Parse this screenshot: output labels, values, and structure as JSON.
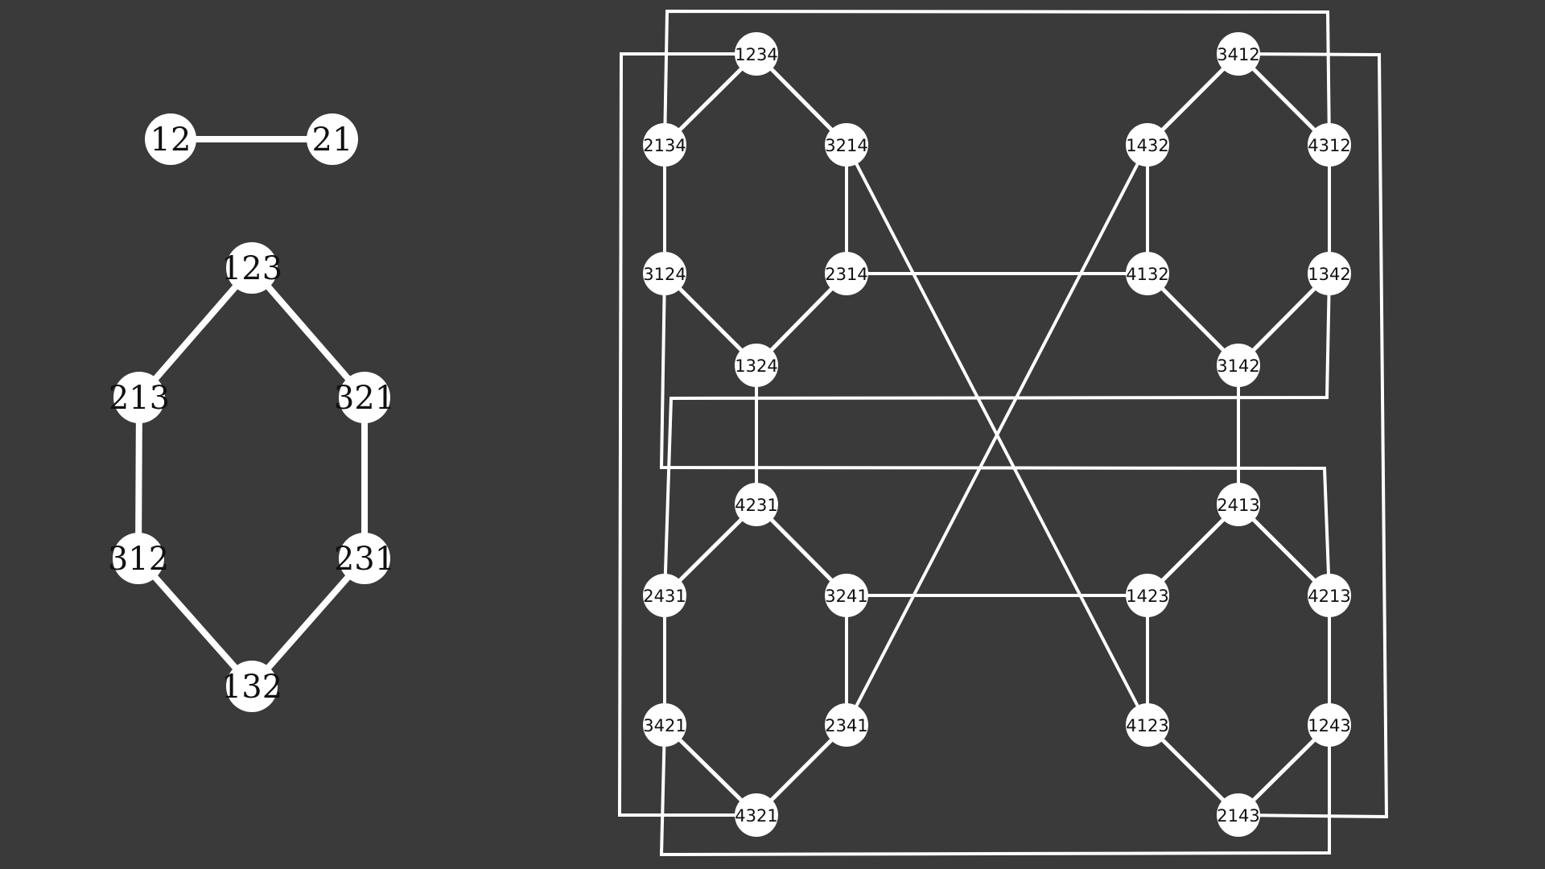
{
  "colors": {
    "background": "#3a3a3a",
    "edge": "#ffffff",
    "node_fill": "#ffffff",
    "label": "#111111"
  },
  "graphs": [
    {
      "id": "n2",
      "nodes": [
        "12",
        "21"
      ],
      "edges": [
        [
          "12",
          "21"
        ]
      ]
    },
    {
      "id": "n3",
      "nodes": [
        "123",
        "213",
        "321",
        "312",
        "231",
        "132"
      ],
      "edges": [
        [
          "123",
          "213"
        ],
        [
          "123",
          "321"
        ],
        [
          "213",
          "312"
        ],
        [
          "321",
          "231"
        ],
        [
          "312",
          "132"
        ],
        [
          "231",
          "132"
        ]
      ]
    },
    {
      "id": "n4",
      "nodes": [
        "1234",
        "2134",
        "3214",
        "3124",
        "2314",
        "1324",
        "3412",
        "1432",
        "4312",
        "4132",
        "1342",
        "3142",
        "4231",
        "2431",
        "3241",
        "3421",
        "2341",
        "4321",
        "2413",
        "1423",
        "4213",
        "4123",
        "1243",
        "2143"
      ],
      "edges": [
        [
          "1234",
          "2134"
        ],
        [
          "1234",
          "3214"
        ],
        [
          "2134",
          "3124"
        ],
        [
          "3214",
          "2314"
        ],
        [
          "3124",
          "1324"
        ],
        [
          "2314",
          "1324"
        ],
        [
          "3412",
          "1432"
        ],
        [
          "3412",
          "4312"
        ],
        [
          "1432",
          "4132"
        ],
        [
          "4312",
          "1342"
        ],
        [
          "4132",
          "3142"
        ],
        [
          "1342",
          "3142"
        ],
        [
          "4231",
          "2431"
        ],
        [
          "4231",
          "3241"
        ],
        [
          "2431",
          "3421"
        ],
        [
          "3241",
          "2341"
        ],
        [
          "3421",
          "4321"
        ],
        [
          "2341",
          "4321"
        ],
        [
          "2413",
          "1423"
        ],
        [
          "2413",
          "4213"
        ],
        [
          "1423",
          "4123"
        ],
        [
          "4213",
          "1243"
        ],
        [
          "4123",
          "2143"
        ],
        [
          "1243",
          "2143"
        ],
        [
          "1324",
          "4231"
        ],
        [
          "3142",
          "2413"
        ],
        [
          "2314",
          "4132"
        ],
        [
          "3241",
          "1423"
        ],
        [
          "3214",
          "4123"
        ],
        [
          "1432",
          "2341"
        ],
        [
          "1234",
          "4321"
        ],
        [
          "3412",
          "2143"
        ],
        [
          "2134",
          "4312"
        ],
        [
          "3124",
          "4213"
        ],
        [
          "1342",
          "2431"
        ],
        [
          "3421",
          "1243"
        ]
      ]
    }
  ]
}
